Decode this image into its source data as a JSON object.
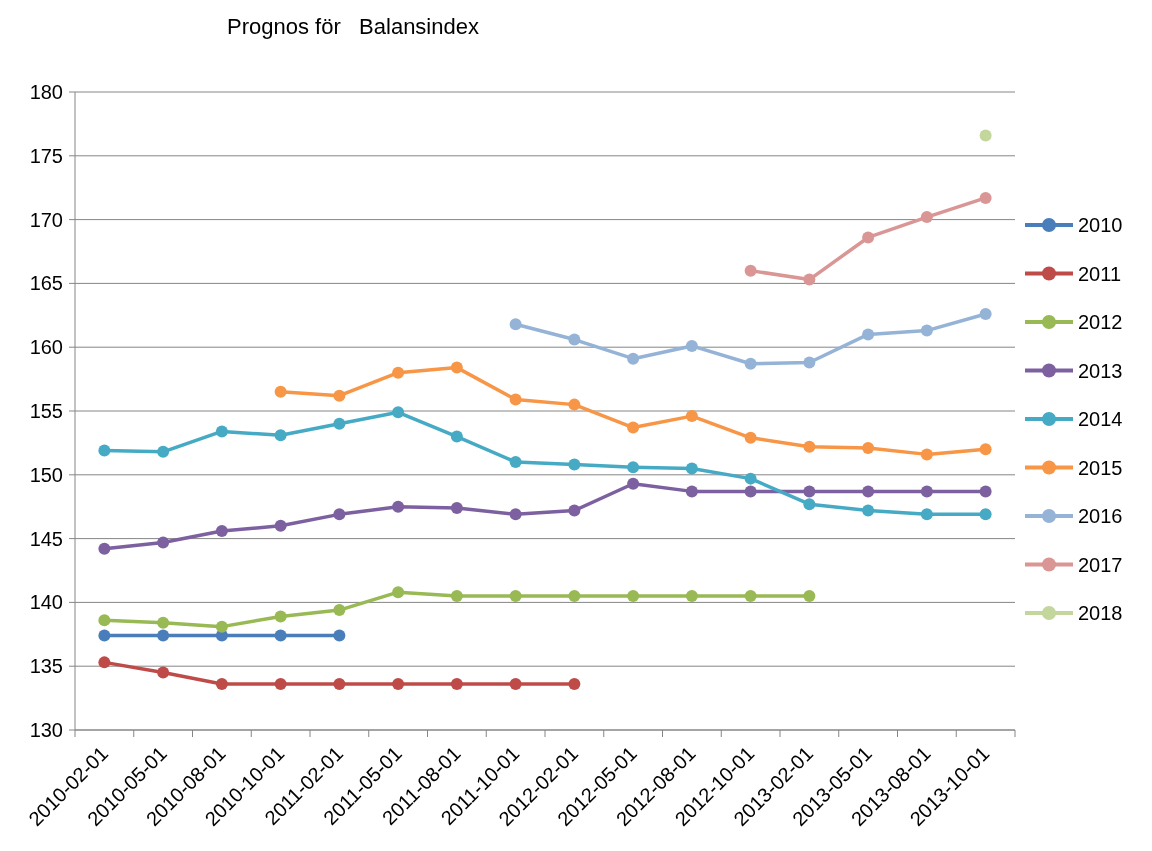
{
  "chart_data": {
    "type": "line",
    "title": "Prognos för   Balansindex",
    "categories": [
      "2010-02-01",
      "2010-05-01",
      "2010-08-01",
      "2010-10-01",
      "2011-02-01",
      "2011-05-01",
      "2011-08-01",
      "2011-10-01",
      "2012-02-01",
      "2012-05-01",
      "2012-08-01",
      "2012-10-01",
      "2013-02-01",
      "2013-05-01",
      "2013-08-01",
      "2013-10-01"
    ],
    "series": [
      {
        "name": "2010",
        "color": "#4a7ebb",
        "values": [
          137.4,
          137.4,
          137.4,
          137.4,
          137.4,
          null,
          null,
          null,
          null,
          null,
          null,
          null,
          null,
          null,
          null,
          null
        ]
      },
      {
        "name": "2011",
        "color": "#be4b48",
        "values": [
          135.3,
          134.5,
          133.6,
          133.6,
          133.6,
          133.6,
          133.6,
          133.6,
          133.6,
          null,
          null,
          null,
          null,
          null,
          null,
          null
        ]
      },
      {
        "name": "2012",
        "color": "#98b954",
        "values": [
          138.6,
          138.4,
          138.1,
          138.9,
          139.4,
          140.8,
          140.5,
          140.5,
          140.5,
          140.5,
          140.5,
          140.5,
          140.5,
          null,
          null,
          null
        ]
      },
      {
        "name": "2013",
        "color": "#7d60a0",
        "values": [
          144.2,
          144.7,
          145.6,
          146.0,
          146.9,
          147.5,
          147.4,
          146.9,
          147.2,
          149.3,
          148.7,
          148.7,
          148.7,
          148.7,
          148.7,
          148.7
        ]
      },
      {
        "name": "2014",
        "color": "#46aac5",
        "values": [
          151.9,
          151.8,
          153.4,
          153.1,
          154.0,
          154.9,
          153.0,
          151.0,
          150.8,
          150.6,
          150.5,
          149.7,
          147.7,
          147.2,
          146.9,
          146.9
        ]
      },
      {
        "name": "2015",
        "color": "#f79646",
        "values": [
          null,
          null,
          null,
          156.5,
          156.2,
          158.0,
          158.4,
          155.9,
          155.5,
          153.7,
          154.6,
          152.9,
          152.2,
          152.1,
          151.6,
          152.0
        ]
      },
      {
        "name": "2016",
        "color": "#95b3d7",
        "values": [
          null,
          null,
          null,
          null,
          null,
          null,
          null,
          161.8,
          160.6,
          159.1,
          160.1,
          158.7,
          158.8,
          161.0,
          161.3,
          162.6
        ]
      },
      {
        "name": "2017",
        "color": "#d99694",
        "values": [
          null,
          null,
          null,
          null,
          null,
          null,
          null,
          null,
          null,
          null,
          null,
          166.0,
          165.3,
          168.6,
          170.2,
          171.7
        ]
      },
      {
        "name": "2018",
        "color": "#c3d69b",
        "values": [
          null,
          null,
          null,
          null,
          null,
          null,
          null,
          null,
          null,
          null,
          null,
          null,
          null,
          null,
          null,
          176.6
        ]
      }
    ],
    "ylim": [
      130,
      180
    ],
    "yticks": [
      130,
      135,
      140,
      145,
      150,
      155,
      160,
      165,
      170,
      175,
      180
    ],
    "grid": "y",
    "legend": "right",
    "marker": "circle",
    "line_style": "solid"
  }
}
